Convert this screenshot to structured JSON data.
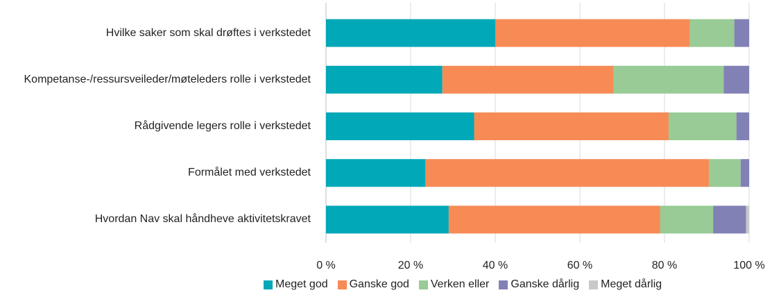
{
  "chart_data": {
    "type": "stacked_barh",
    "categories": [
      "Hvilke saker som skal drøftes i verkstedet",
      "Kompetanse-/ressursveileder/møteleders rolle i verkstedet",
      "Rådgivende legers rolle i verkstedet",
      "Formålet med verkstedet",
      "Hvordan Nav skal håndheve aktivitetskravet"
    ],
    "series": [
      {
        "name": "Meget god",
        "color": "#00a8b8",
        "values": [
          40,
          27.5,
          35,
          23.5,
          29
        ]
      },
      {
        "name": "Ganske god",
        "color": "#f68b56",
        "values": [
          46,
          40.5,
          46,
          67,
          50
        ]
      },
      {
        "name": "Verken eller",
        "color": "#98cb95",
        "values": [
          10.5,
          26,
          16,
          7.5,
          12.5
        ]
      },
      {
        "name": "Ganske dårlig",
        "color": "#8281b6",
        "values": [
          3.5,
          6,
          3,
          2,
          7.8
        ]
      },
      {
        "name": "Meget dårlig",
        "color": "#c9c9c9",
        "values": [
          0,
          0,
          0,
          0,
          0.7
        ]
      }
    ],
    "xlim": [
      0,
      100
    ],
    "xticks": [
      {
        "value": 0,
        "label": "0 %"
      },
      {
        "value": 20,
        "label": "20 %"
      },
      {
        "value": 40,
        "label": "40 %"
      },
      {
        "value": 60,
        "label": "60 %"
      },
      {
        "value": 80,
        "label": "80 %"
      },
      {
        "value": 100,
        "label": "100 %"
      }
    ],
    "grid": true,
    "legend": "bottom"
  }
}
